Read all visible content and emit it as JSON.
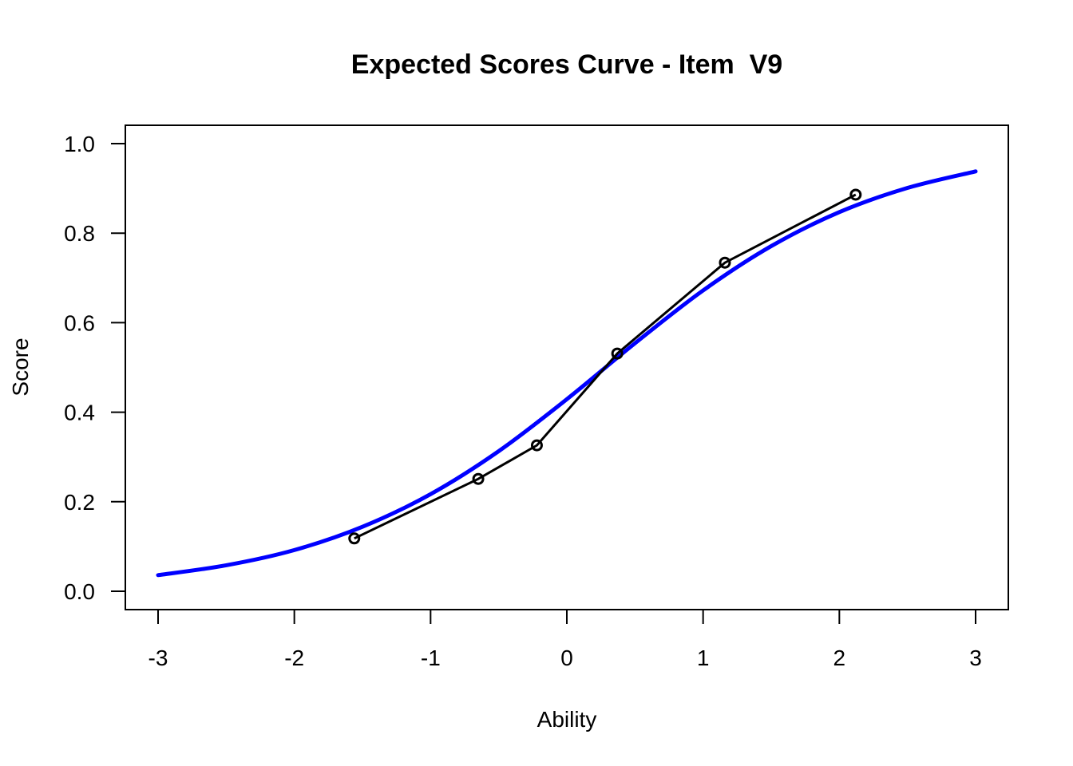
{
  "chart_data": {
    "type": "line",
    "title": "Expected Scores Curve - Item  V9",
    "xlabel": "Ability",
    "ylabel": "Score",
    "xlim": [
      -3,
      3
    ],
    "ylim": [
      0,
      1
    ],
    "xticks": [
      "-3",
      "-2",
      "-1",
      "0",
      "1",
      "2",
      "3"
    ],
    "yticks": [
      "0.0",
      "0.2",
      "0.4",
      "0.6",
      "0.8",
      "1.0"
    ],
    "grid": false,
    "legend": "none",
    "series": [
      {
        "style": "curve",
        "color": "#0000ff",
        "x": [
          -3,
          -2.5,
          -2,
          -1.5,
          -1,
          -0.5,
          0,
          0.5,
          1,
          1.5,
          2,
          2.5,
          3
        ],
        "y": [
          0.036,
          0.058,
          0.092,
          0.144,
          0.217,
          0.313,
          0.429,
          0.554,
          0.672,
          0.771,
          0.847,
          0.901,
          0.938
        ]
      },
      {
        "style": "line-points",
        "color": "#000000",
        "x": [
          -1.56,
          -0.65,
          -0.22,
          0.37,
          1.16,
          2.12
        ],
        "y": [
          0.118,
          0.251,
          0.326,
          0.531,
          0.734,
          0.886
        ]
      }
    ]
  }
}
